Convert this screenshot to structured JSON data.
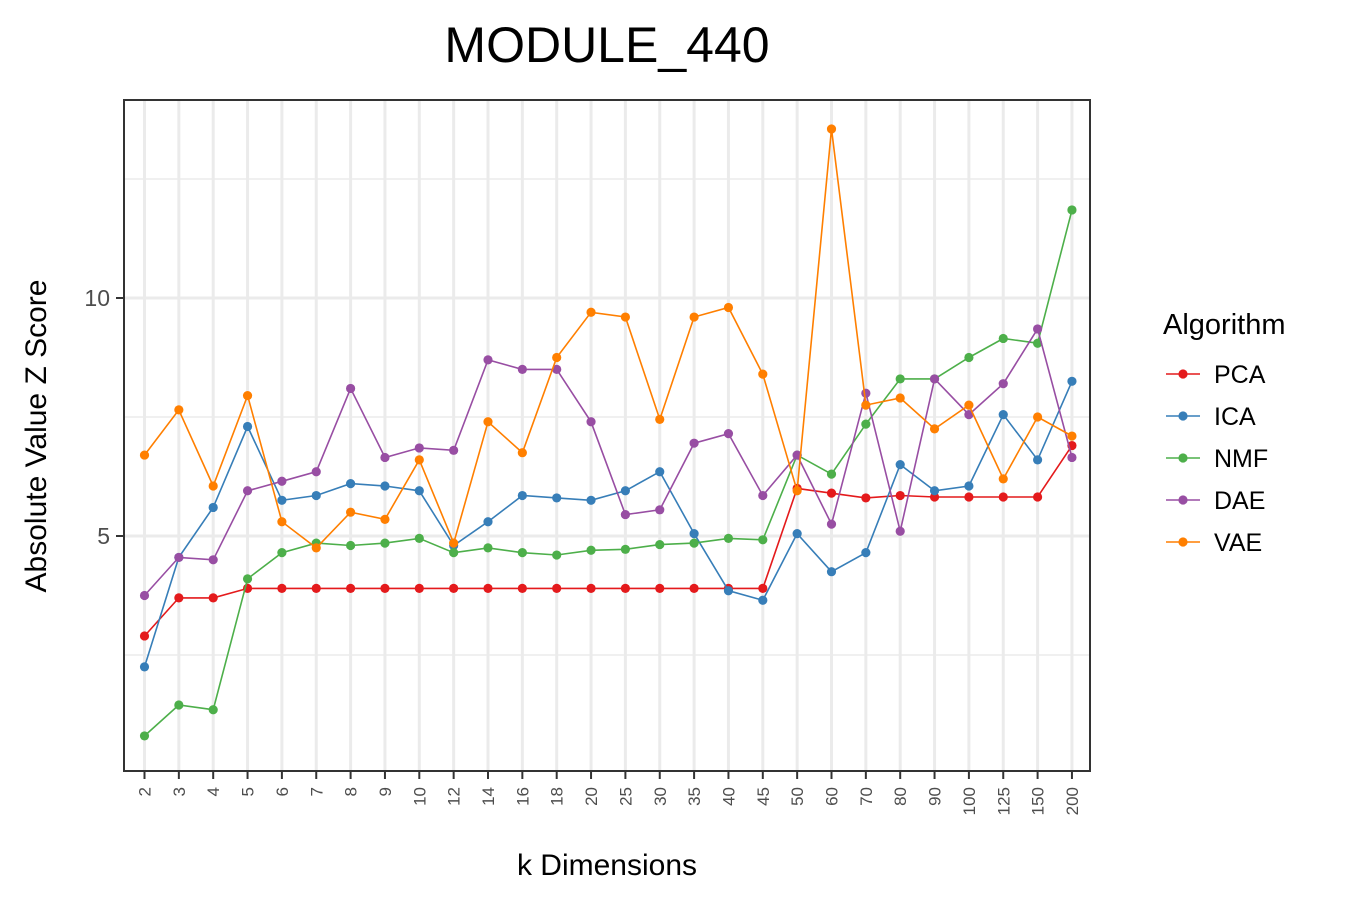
{
  "chart_data": {
    "type": "line",
    "title": "MODULE_440",
    "xlabel": "k Dimensions",
    "ylabel": "Absolute Value Z Score",
    "categories": [
      "2",
      "3",
      "4",
      "5",
      "6",
      "7",
      "8",
      "9",
      "10",
      "12",
      "14",
      "16",
      "18",
      "20",
      "25",
      "30",
      "35",
      "40",
      "45",
      "50",
      "60",
      "70",
      "80",
      "90",
      "100",
      "125",
      "150",
      "200"
    ],
    "ylim": [
      0.5,
      14.2
    ],
    "yticks": [
      5,
      10
    ],
    "grid": true,
    "legend": {
      "title": "Algorithm",
      "position": "right"
    },
    "series": [
      {
        "name": "PCA",
        "color": "#e41a1c",
        "values": [
          2.9,
          3.7,
          3.7,
          3.9,
          3.9,
          3.9,
          3.9,
          3.9,
          3.9,
          3.9,
          3.9,
          3.9,
          3.9,
          3.9,
          3.9,
          3.9,
          3.9,
          3.9,
          3.9,
          6.0,
          5.9,
          5.8,
          5.85,
          5.82,
          5.82,
          5.82,
          5.82,
          6.9
        ]
      },
      {
        "name": "ICA",
        "color": "#377eb8",
        "values": [
          2.25,
          4.55,
          5.6,
          7.3,
          5.75,
          5.85,
          6.1,
          6.05,
          5.95,
          4.8,
          5.3,
          5.85,
          5.8,
          5.75,
          5.95,
          6.35,
          5.05,
          3.85,
          3.65,
          5.05,
          4.25,
          4.65,
          6.5,
          5.95,
          6.05,
          7.55,
          6.6,
          8.25
        ]
      },
      {
        "name": "NMF",
        "color": "#4daf4a",
        "values": [
          0.8,
          1.45,
          1.35,
          4.1,
          4.65,
          4.85,
          4.8,
          4.85,
          4.95,
          4.65,
          4.75,
          4.65,
          4.6,
          4.7,
          4.72,
          4.82,
          4.85,
          4.95,
          4.92,
          6.7,
          6.3,
          7.35,
          8.3,
          8.3,
          8.75,
          9.15,
          9.05,
          11.85
        ]
      },
      {
        "name": "DAE",
        "color": "#984ea3",
        "values": [
          3.75,
          4.55,
          4.5,
          5.95,
          6.15,
          6.35,
          8.1,
          6.65,
          6.85,
          6.8,
          8.7,
          8.5,
          8.5,
          7.4,
          5.45,
          5.55,
          6.95,
          7.15,
          5.85,
          6.7,
          5.25,
          8.0,
          5.1,
          8.3,
          7.55,
          8.2,
          9.35,
          6.65
        ]
      },
      {
        "name": "VAE",
        "color": "#ff7f00",
        "values": [
          6.7,
          7.65,
          6.05,
          7.95,
          5.3,
          4.75,
          5.5,
          5.35,
          6.6,
          4.85,
          7.4,
          6.75,
          8.75,
          9.7,
          9.6,
          7.45,
          9.6,
          9.8,
          8.4,
          5.95,
          13.55,
          7.75,
          7.9,
          7.25,
          7.75,
          6.2,
          7.5,
          7.1
        ]
      }
    ]
  }
}
